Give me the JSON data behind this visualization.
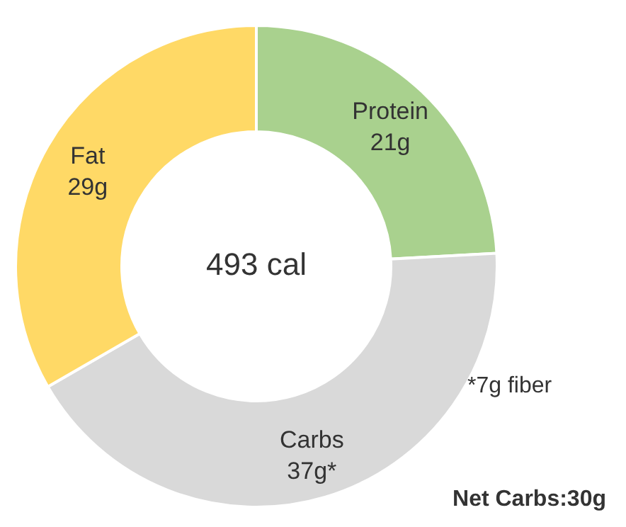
{
  "chart_data": {
    "type": "donut",
    "categories": [
      "Protein",
      "Carbs",
      "Fat"
    ],
    "values": [
      21,
      37,
      29
    ],
    "colors": [
      "#a9d18e",
      "#d9d9d9",
      "#ffd966"
    ],
    "value_labels": [
      "21g",
      "37g*",
      "29g"
    ],
    "annotations": [
      "493 cal",
      "*7g fiber",
      "Net Carbs:30g"
    ],
    "legend": false
  }
}
